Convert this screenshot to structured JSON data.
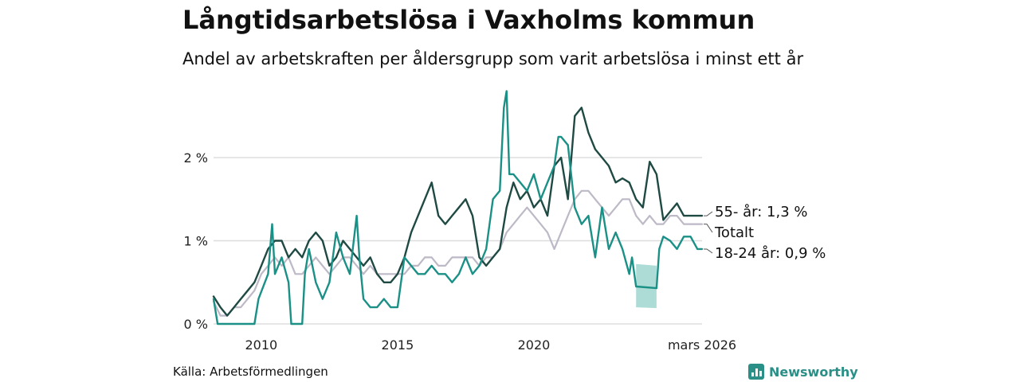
{
  "title": "Långtidsarbetslösa i Vaxholms kommun",
  "subtitle": "Andel av arbetskraften per åldersgrupp som varit arbetslösa i minst ett år",
  "source": "Källa: Arbetsförmedlingen",
  "brand": "Newsworthy",
  "colors": {
    "age55": "#1f4a44",
    "total": "#bdb9c6",
    "young": "#1a9086",
    "band": "#9fd6cf",
    "grid": "#dddddd",
    "brand": "#2a8f87"
  },
  "chart_data": {
    "type": "line",
    "x_unit": "year (decimal, monthly data)",
    "ylim": [
      0,
      2.8
    ],
    "xlim": [
      2008.25,
      2026.17
    ],
    "y_ticks": [
      {
        "value": 0,
        "label": "0 %"
      },
      {
        "value": 1,
        "label": "1 %"
      },
      {
        "value": 2,
        "label": "2 %"
      }
    ],
    "x_ticks": [
      {
        "value": 2010,
        "label": "2010"
      },
      {
        "value": 2015,
        "label": "2015"
      },
      {
        "value": 2020,
        "label": "2020"
      },
      {
        "value": 2026.17,
        "label": "mars 2026"
      }
    ],
    "uncertainty_band": {
      "series": "18-24 år",
      "x": [
        2023.75,
        2024.5
      ],
      "upper": [
        0.72,
        0.7
      ],
      "lower": [
        0.2,
        0.19
      ]
    },
    "series": [
      {
        "name": "Totalt",
        "key": "total",
        "end_label": "Totalt",
        "points": [
          [
            2008.25,
            0.27
          ],
          [
            2008.5,
            0.1
          ],
          [
            2008.75,
            0.1
          ],
          [
            2009,
            0.2
          ],
          [
            2009.25,
            0.2
          ],
          [
            2009.5,
            0.3
          ],
          [
            2009.75,
            0.4
          ],
          [
            2010,
            0.6
          ],
          [
            2010.25,
            0.7
          ],
          [
            2010.5,
            0.8
          ],
          [
            2010.75,
            0.7
          ],
          [
            2011,
            0.8
          ],
          [
            2011.25,
            0.6
          ],
          [
            2011.5,
            0.6
          ],
          [
            2011.75,
            0.7
          ],
          [
            2012,
            0.8
          ],
          [
            2012.25,
            0.7
          ],
          [
            2012.5,
            0.6
          ],
          [
            2012.75,
            0.7
          ],
          [
            2013,
            0.8
          ],
          [
            2013.25,
            0.8
          ],
          [
            2013.5,
            0.7
          ],
          [
            2013.75,
            0.6
          ],
          [
            2014,
            0.7
          ],
          [
            2014.25,
            0.6
          ],
          [
            2014.5,
            0.6
          ],
          [
            2014.75,
            0.6
          ],
          [
            2015,
            0.6
          ],
          [
            2015.25,
            0.6
          ],
          [
            2015.5,
            0.7
          ],
          [
            2015.75,
            0.7
          ],
          [
            2016,
            0.8
          ],
          [
            2016.25,
            0.8
          ],
          [
            2016.5,
            0.7
          ],
          [
            2016.75,
            0.7
          ],
          [
            2017,
            0.8
          ],
          [
            2017.25,
            0.8
          ],
          [
            2017.5,
            0.8
          ],
          [
            2017.75,
            0.8
          ],
          [
            2018,
            0.7
          ],
          [
            2018.25,
            0.8
          ],
          [
            2018.5,
            0.8
          ],
          [
            2018.75,
            0.9
          ],
          [
            2019,
            1.1
          ],
          [
            2019.25,
            1.2
          ],
          [
            2019.5,
            1.3
          ],
          [
            2019.75,
            1.4
          ],
          [
            2020,
            1.3
          ],
          [
            2020.25,
            1.2
          ],
          [
            2020.5,
            1.1
          ],
          [
            2020.75,
            0.9
          ],
          [
            2021,
            1.1
          ],
          [
            2021.25,
            1.3
          ],
          [
            2021.5,
            1.5
          ],
          [
            2021.75,
            1.6
          ],
          [
            2022,
            1.6
          ],
          [
            2022.25,
            1.5
          ],
          [
            2022.5,
            1.4
          ],
          [
            2022.75,
            1.3
          ],
          [
            2023,
            1.4
          ],
          [
            2023.25,
            1.5
          ],
          [
            2023.5,
            1.5
          ],
          [
            2023.75,
            1.3
          ],
          [
            2024,
            1.2
          ],
          [
            2024.25,
            1.3
          ],
          [
            2024.5,
            1.2
          ],
          [
            2024.75,
            1.2
          ],
          [
            2025,
            1.3
          ],
          [
            2025.25,
            1.3
          ],
          [
            2025.5,
            1.2
          ],
          [
            2025.75,
            1.2
          ],
          [
            2026,
            1.2
          ],
          [
            2026.17,
            1.2
          ]
        ]
      },
      {
        "name": "55- år",
        "key": "age55",
        "end_label": "55- år: 1,3 %",
        "points": [
          [
            2008.25,
            0.33
          ],
          [
            2008.5,
            0.2
          ],
          [
            2008.75,
            0.1
          ],
          [
            2009,
            0.2
          ],
          [
            2009.25,
            0.3
          ],
          [
            2009.5,
            0.4
          ],
          [
            2009.75,
            0.5
          ],
          [
            2010,
            0.7
          ],
          [
            2010.25,
            0.9
          ],
          [
            2010.5,
            1.0
          ],
          [
            2010.75,
            1.0
          ],
          [
            2011,
            0.8
          ],
          [
            2011.25,
            0.9
          ],
          [
            2011.5,
            0.8
          ],
          [
            2011.75,
            1.0
          ],
          [
            2012,
            1.1
          ],
          [
            2012.25,
            1.0
          ],
          [
            2012.5,
            0.7
          ],
          [
            2012.75,
            0.8
          ],
          [
            2013,
            1.0
          ],
          [
            2013.25,
            0.9
          ],
          [
            2013.5,
            0.8
          ],
          [
            2013.75,
            0.7
          ],
          [
            2014,
            0.8
          ],
          [
            2014.25,
            0.6
          ],
          [
            2014.5,
            0.5
          ],
          [
            2014.75,
            0.5
          ],
          [
            2015,
            0.6
          ],
          [
            2015.25,
            0.8
          ],
          [
            2015.5,
            1.1
          ],
          [
            2015.75,
            1.3
          ],
          [
            2016,
            1.5
          ],
          [
            2016.25,
            1.7
          ],
          [
            2016.5,
            1.3
          ],
          [
            2016.75,
            1.2
          ],
          [
            2017,
            1.3
          ],
          [
            2017.25,
            1.4
          ],
          [
            2017.5,
            1.5
          ],
          [
            2017.75,
            1.3
          ],
          [
            2018,
            0.8
          ],
          [
            2018.25,
            0.7
          ],
          [
            2018.5,
            0.8
          ],
          [
            2018.75,
            0.9
          ],
          [
            2019,
            1.4
          ],
          [
            2019.25,
            1.7
          ],
          [
            2019.5,
            1.5
          ],
          [
            2019.75,
            1.6
          ],
          [
            2020,
            1.4
          ],
          [
            2020.25,
            1.5
          ],
          [
            2020.5,
            1.3
          ],
          [
            2020.75,
            1.9
          ],
          [
            2021,
            2.0
          ],
          [
            2021.25,
            1.5
          ],
          [
            2021.5,
            2.5
          ],
          [
            2021.75,
            2.6
          ],
          [
            2022,
            2.3
          ],
          [
            2022.25,
            2.1
          ],
          [
            2022.5,
            2.0
          ],
          [
            2022.75,
            1.9
          ],
          [
            2023,
            1.7
          ],
          [
            2023.25,
            1.75
          ],
          [
            2023.5,
            1.7
          ],
          [
            2023.75,
            1.5
          ],
          [
            2024,
            1.4
          ],
          [
            2024.25,
            1.95
          ],
          [
            2024.5,
            1.8
          ],
          [
            2024.75,
            1.25
          ],
          [
            2025,
            1.35
          ],
          [
            2025.25,
            1.45
          ],
          [
            2025.5,
            1.3
          ],
          [
            2025.75,
            1.3
          ],
          [
            2026,
            1.3
          ],
          [
            2026.17,
            1.3
          ]
        ]
      },
      {
        "name": "18-24 år",
        "key": "young",
        "end_label": "18-24 år: 0,9 %",
        "points": [
          [
            2008.25,
            0.3
          ],
          [
            2008.4,
            0.0
          ],
          [
            2009,
            0.0
          ],
          [
            2009.5,
            0.0
          ],
          [
            2009.75,
            0.0
          ],
          [
            2009.9,
            0.3
          ],
          [
            2010.25,
            0.6
          ],
          [
            2010.4,
            1.2
          ],
          [
            2010.5,
            0.6
          ],
          [
            2010.75,
            0.8
          ],
          [
            2011,
            0.5
          ],
          [
            2011.1,
            0.0
          ],
          [
            2011.5,
            0.0
          ],
          [
            2011.6,
            0.6
          ],
          [
            2011.75,
            0.9
          ],
          [
            2012,
            0.5
          ],
          [
            2012.25,
            0.3
          ],
          [
            2012.5,
            0.5
          ],
          [
            2012.75,
            1.1
          ],
          [
            2013,
            0.8
          ],
          [
            2013.25,
            0.6
          ],
          [
            2013.5,
            1.3
          ],
          [
            2013.6,
            0.8
          ],
          [
            2013.75,
            0.3
          ],
          [
            2014,
            0.2
          ],
          [
            2014.25,
            0.2
          ],
          [
            2014.5,
            0.3
          ],
          [
            2014.75,
            0.2
          ],
          [
            2015,
            0.2
          ],
          [
            2015.25,
            0.8
          ],
          [
            2015.5,
            0.7
          ],
          [
            2015.75,
            0.6
          ],
          [
            2016,
            0.6
          ],
          [
            2016.25,
            0.7
          ],
          [
            2016.5,
            0.6
          ],
          [
            2016.75,
            0.6
          ],
          [
            2017,
            0.5
          ],
          [
            2017.25,
            0.6
          ],
          [
            2017.5,
            0.8
          ],
          [
            2017.75,
            0.6
          ],
          [
            2018,
            0.7
          ],
          [
            2018.25,
            0.9
          ],
          [
            2018.5,
            1.5
          ],
          [
            2018.75,
            1.6
          ],
          [
            2018.9,
            2.6
          ],
          [
            2019,
            2.8
          ],
          [
            2019.1,
            1.8
          ],
          [
            2019.25,
            1.8
          ],
          [
            2019.5,
            1.7
          ],
          [
            2019.75,
            1.6
          ],
          [
            2020,
            1.8
          ],
          [
            2020.25,
            1.5
          ],
          [
            2020.5,
            1.7
          ],
          [
            2020.75,
            1.9
          ],
          [
            2020.9,
            2.25
          ],
          [
            2021,
            2.25
          ],
          [
            2021.25,
            2.15
          ],
          [
            2021.5,
            1.4
          ],
          [
            2021.75,
            1.2
          ],
          [
            2022,
            1.3
          ],
          [
            2022.25,
            0.8
          ],
          [
            2022.5,
            1.4
          ],
          [
            2022.75,
            0.9
          ],
          [
            2023,
            1.1
          ],
          [
            2023.25,
            0.9
          ],
          [
            2023.5,
            0.6
          ],
          [
            2023.6,
            0.8
          ],
          [
            2023.75,
            0.45
          ],
          [
            2024.5,
            0.43
          ],
          [
            2024.6,
            0.9
          ],
          [
            2024.75,
            1.05
          ],
          [
            2025,
            1.0
          ],
          [
            2025.25,
            0.9
          ],
          [
            2025.5,
            1.05
          ],
          [
            2025.75,
            1.05
          ],
          [
            2026,
            0.9
          ],
          [
            2026.17,
            0.9
          ]
        ]
      }
    ]
  }
}
